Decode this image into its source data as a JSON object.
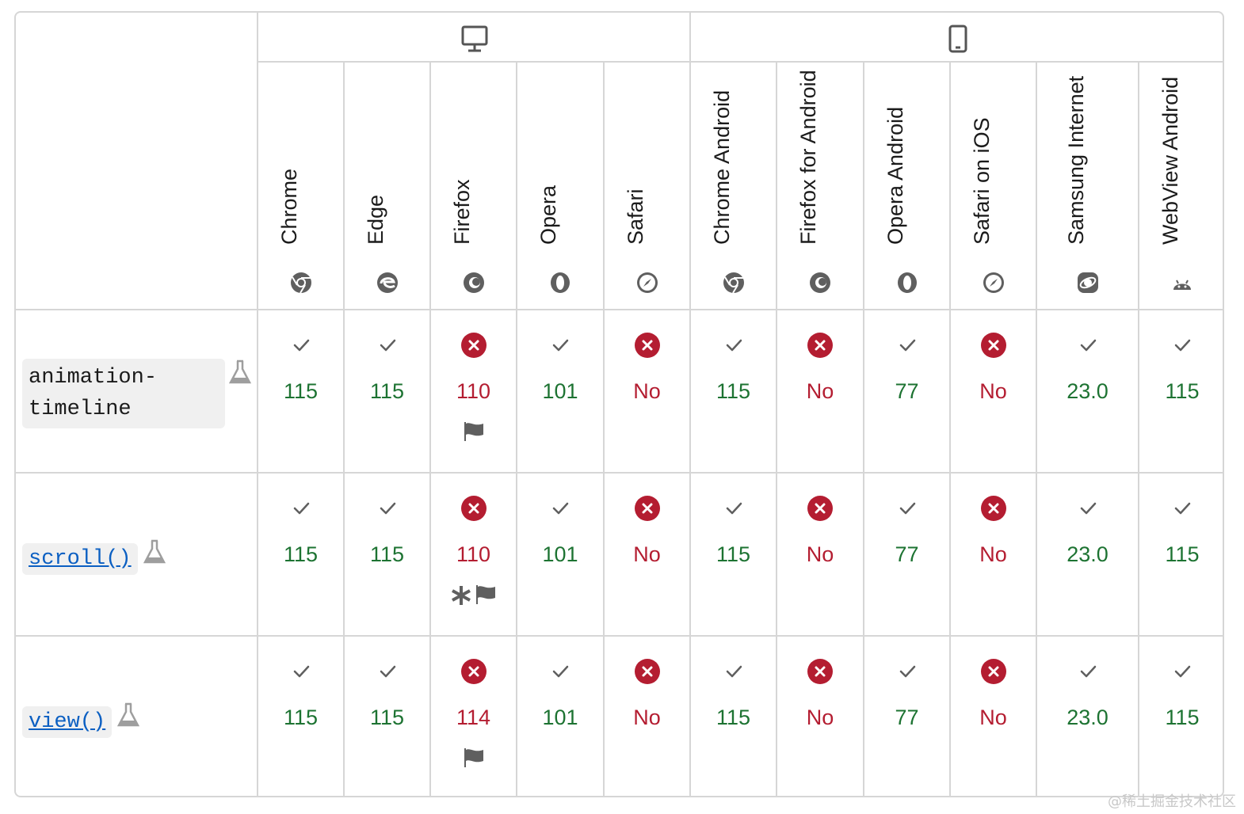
{
  "platforms": {
    "desktop_icon": "desktop-icon",
    "mobile_icon": "mobile-icon"
  },
  "browsers": [
    {
      "name": "Chrome",
      "icon": "chrome-icon"
    },
    {
      "name": "Edge",
      "icon": "edge-icon"
    },
    {
      "name": "Firefox",
      "icon": "firefox-icon"
    },
    {
      "name": "Opera",
      "icon": "opera-icon"
    },
    {
      "name": "Safari",
      "icon": "safari-icon"
    },
    {
      "name": "Chrome Android",
      "icon": "chrome-icon"
    },
    {
      "name": "Firefox for Android",
      "icon": "firefox-icon"
    },
    {
      "name": "Opera Android",
      "icon": "opera-icon"
    },
    {
      "name": "Safari on iOS",
      "icon": "safari-icon"
    },
    {
      "name": "Samsung Internet",
      "icon": "samsung-icon"
    },
    {
      "name": "WebView Android",
      "icon": "android-icon"
    }
  ],
  "features": [
    {
      "name": "animation-timeline",
      "name_lines": [
        "animation-",
        "timeline"
      ],
      "link": false,
      "experimental_icon": "flask-icon",
      "support": [
        {
          "status": "yes",
          "version": "115"
        },
        {
          "status": "yes",
          "version": "115"
        },
        {
          "status": "no",
          "version": "110",
          "notes": [
            "flag-icon"
          ]
        },
        {
          "status": "yes",
          "version": "101"
        },
        {
          "status": "no",
          "version": "No"
        },
        {
          "status": "yes",
          "version": "115"
        },
        {
          "status": "no",
          "version": "No"
        },
        {
          "status": "yes",
          "version": "77"
        },
        {
          "status": "no",
          "version": "No"
        },
        {
          "status": "yes",
          "version": "23.0"
        },
        {
          "status": "yes",
          "version": "115"
        }
      ]
    },
    {
      "name": "scroll()",
      "name_lines": [
        "scroll()"
      ],
      "link": true,
      "experimental_icon": "flask-icon",
      "support": [
        {
          "status": "yes",
          "version": "115"
        },
        {
          "status": "yes",
          "version": "115"
        },
        {
          "status": "no",
          "version": "110",
          "notes": [
            "asterisk-icon",
            "flag-icon"
          ]
        },
        {
          "status": "yes",
          "version": "101"
        },
        {
          "status": "no",
          "version": "No"
        },
        {
          "status": "yes",
          "version": "115"
        },
        {
          "status": "no",
          "version": "No"
        },
        {
          "status": "yes",
          "version": "77"
        },
        {
          "status": "no",
          "version": "No"
        },
        {
          "status": "yes",
          "version": "23.0"
        },
        {
          "status": "yes",
          "version": "115"
        }
      ]
    },
    {
      "name": "view()",
      "name_lines": [
        "view()"
      ],
      "link": true,
      "experimental_icon": "flask-icon",
      "support": [
        {
          "status": "yes",
          "version": "115"
        },
        {
          "status": "yes",
          "version": "115"
        },
        {
          "status": "no",
          "version": "114",
          "notes": [
            "flag-icon"
          ]
        },
        {
          "status": "yes",
          "version": "101"
        },
        {
          "status": "no",
          "version": "No"
        },
        {
          "status": "yes",
          "version": "115"
        },
        {
          "status": "no",
          "version": "No"
        },
        {
          "status": "yes",
          "version": "77"
        },
        {
          "status": "no",
          "version": "No"
        },
        {
          "status": "yes",
          "version": "23.0"
        },
        {
          "status": "yes",
          "version": "115"
        }
      ]
    }
  ],
  "colors": {
    "supported": "#1d7332",
    "unsupported": "#b41d31",
    "link": "#0b5fc2",
    "border": "#d6d6d6"
  },
  "watermark": "@稀土掘金技术社区"
}
